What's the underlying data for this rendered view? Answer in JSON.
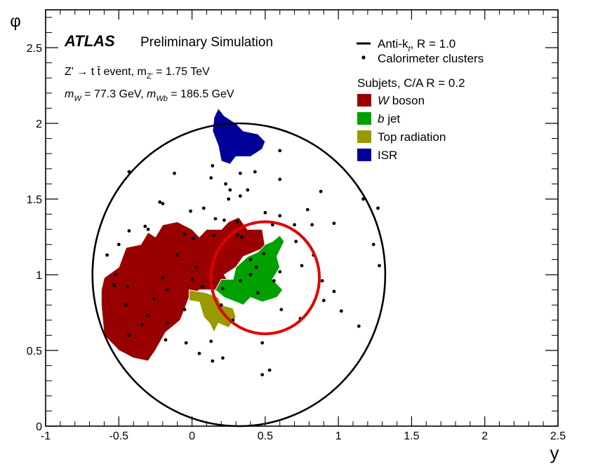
{
  "chart_data": {
    "type": "scatter",
    "xlabel": "y",
    "ylabel": "φ",
    "xlim": [
      -1,
      2.5
    ],
    "ylim": [
      0,
      2.75
    ],
    "x_ticks": [
      "-1",
      "-0.5",
      "0",
      "0.5",
      "1",
      "1.5",
      "2",
      "2.5"
    ],
    "y_ticks": [
      "0",
      "0.5",
      "1",
      "1.5",
      "2",
      "2.5"
    ],
    "annotations": {
      "atlas": "ATLAS",
      "label": "Preliminary Simulation",
      "process": "Z' → t t̄ event, m",
      "process_sub": "Z'",
      "process_value": " = 1.75 TeV",
      "mass_w_sym": "m",
      "mass_w_sub": "W",
      "mass_w_value": " = 77.3 GeV, ",
      "mass_wb_sym": "m",
      "mass_wb_sub": "Wb",
      "mass_wb_value": " = 186.5 GeV"
    },
    "legend": {
      "jet_label": "Anti-k",
      "jet_sub": "t",
      "jet_rest": ", R = 1.0",
      "clusters_label": "Calorimeter clusters",
      "subjets_header": "Subjets, C/A R = 0.2",
      "entries": [
        {
          "symbol": "W",
          "text": " boson",
          "color": "#990000"
        },
        {
          "symbol": "b",
          "text": " jet",
          "color": "#00a000"
        },
        {
          "symbol": "",
          "text": "Top radiation",
          "color": "#999900"
        },
        {
          "symbol": "",
          "text": "ISR",
          "color": "#000099"
        }
      ]
    },
    "large_jet": {
      "center": [
        0.32,
        1.0
      ],
      "radius": 1.0
    },
    "highlight_circle": {
      "center": [
        0.5,
        0.98
      ],
      "radius": 0.37,
      "color": "#e00000"
    },
    "subjet_regions": [
      {
        "name": "W boson",
        "color": "#990000",
        "points": [
          [
            -0.62,
            0.8
          ],
          [
            -0.6,
            0.6
          ],
          [
            -0.5,
            0.5
          ],
          [
            -0.4,
            0.45
          ],
          [
            -0.3,
            0.43
          ],
          [
            -0.25,
            0.5
          ],
          [
            -0.18,
            0.62
          ],
          [
            -0.08,
            0.7
          ],
          [
            -0.02,
            0.85
          ],
          [
            0.05,
            0.9
          ],
          [
            0.15,
            0.9
          ],
          [
            0.22,
            0.85
          ],
          [
            0.25,
            0.95
          ],
          [
            0.22,
            1.0
          ],
          [
            0.3,
            1.05
          ],
          [
            0.35,
            1.12
          ],
          [
            0.5,
            1.18
          ],
          [
            0.48,
            1.3
          ],
          [
            0.38,
            1.3
          ],
          [
            0.32,
            1.38
          ],
          [
            0.25,
            1.35
          ],
          [
            0.2,
            1.3
          ],
          [
            0.1,
            1.3
          ],
          [
            0.05,
            1.25
          ],
          [
            0.0,
            1.3
          ],
          [
            -0.1,
            1.35
          ],
          [
            -0.2,
            1.33
          ],
          [
            -0.25,
            1.25
          ],
          [
            -0.3,
            1.28
          ],
          [
            -0.35,
            1.2
          ],
          [
            -0.45,
            1.18
          ],
          [
            -0.5,
            1.05
          ],
          [
            -0.6,
            0.98
          ],
          [
            -0.62,
            0.9
          ]
        ]
      },
      {
        "name": "b jet",
        "color": "#00a000",
        "points": [
          [
            0.16,
            0.9
          ],
          [
            0.22,
            0.85
          ],
          [
            0.3,
            0.82
          ],
          [
            0.35,
            0.8
          ],
          [
            0.4,
            0.85
          ],
          [
            0.48,
            0.82
          ],
          [
            0.58,
            0.85
          ],
          [
            0.62,
            0.9
          ],
          [
            0.55,
            0.97
          ],
          [
            0.6,
            1.05
          ],
          [
            0.58,
            1.12
          ],
          [
            0.63,
            1.22
          ],
          [
            0.6,
            1.26
          ],
          [
            0.55,
            1.22
          ],
          [
            0.5,
            1.2
          ],
          [
            0.45,
            1.15
          ],
          [
            0.38,
            1.12
          ],
          [
            0.3,
            1.05
          ],
          [
            0.28,
            0.97
          ],
          [
            0.2,
            0.97
          ]
        ]
      },
      {
        "name": "Top radiation",
        "color": "#999900",
        "points": [
          [
            -0.02,
            0.9
          ],
          [
            0.1,
            0.88
          ],
          [
            0.18,
            0.85
          ],
          [
            0.2,
            0.8
          ],
          [
            0.28,
            0.78
          ],
          [
            0.3,
            0.72
          ],
          [
            0.25,
            0.65
          ],
          [
            0.18,
            0.68
          ],
          [
            0.15,
            0.62
          ],
          [
            0.12,
            0.68
          ],
          [
            0.08,
            0.72
          ],
          [
            0.05,
            0.82
          ],
          [
            -0.02,
            0.83
          ]
        ]
      },
      {
        "name": "ISR",
        "color": "#000099",
        "points": [
          [
            0.14,
            1.95
          ],
          [
            0.18,
            1.85
          ],
          [
            0.2,
            1.75
          ],
          [
            0.26,
            1.73
          ],
          [
            0.3,
            1.78
          ],
          [
            0.4,
            1.78
          ],
          [
            0.48,
            1.83
          ],
          [
            0.5,
            1.88
          ],
          [
            0.45,
            1.93
          ],
          [
            0.35,
            1.95
          ],
          [
            0.3,
            2.0
          ],
          [
            0.22,
            2.05
          ],
          [
            0.18,
            2.1
          ],
          [
            0.15,
            2.04
          ]
        ]
      }
    ],
    "clusters": [
      [
        0.23,
        1.6
      ],
      [
        0.38,
        1.56
      ],
      [
        0.43,
        1.68
      ],
      [
        0.33,
        1.67
      ],
      [
        0.14,
        1.72
      ],
      [
        0.13,
        1.64
      ],
      [
        0.26,
        1.56
      ],
      [
        0.25,
        1.5
      ],
      [
        0.16,
        1.37
      ],
      [
        0.08,
        1.44
      ],
      [
        0.22,
        1.36
      ],
      [
        0.5,
        1.41
      ],
      [
        0.55,
        1.33
      ],
      [
        0.6,
        1.39
      ],
      [
        0.6,
        1.63
      ],
      [
        0.79,
        1.43
      ],
      [
        0.88,
        1.55
      ],
      [
        0.7,
        1.33
      ],
      [
        0.82,
        1.33
      ],
      [
        1.17,
        1.5
      ],
      [
        1.27,
        1.44
      ],
      [
        1.24,
        1.2
      ],
      [
        1.28,
        1.06
      ],
      [
        0.97,
        1.34
      ],
      [
        0.71,
        1.22
      ],
      [
        0.33,
        0.96
      ],
      [
        0.14,
        0.95
      ],
      [
        0.2,
        0.8
      ],
      [
        0.28,
        0.7
      ],
      [
        -0.22,
        1.48
      ],
      [
        -0.2,
        1.47
      ],
      [
        -0.01,
        1.42
      ],
      [
        0.01,
        1.24
      ],
      [
        -0.05,
        1.27
      ],
      [
        0.15,
        1.26
      ],
      [
        0.31,
        1.26
      ],
      [
        -0.3,
        1.3
      ],
      [
        -0.43,
        1.29
      ],
      [
        -0.58,
        1.13
      ],
      [
        -0.52,
        1.0
      ],
      [
        -0.44,
        0.92
      ],
      [
        -0.45,
        0.8
      ],
      [
        -0.3,
        0.73
      ],
      [
        -0.34,
        0.67
      ],
      [
        -0.26,
        0.84
      ],
      [
        -0.17,
        0.9
      ],
      [
        -0.1,
        1.13
      ],
      [
        -0.2,
        0.98
      ],
      [
        0.03,
        1.05
      ],
      [
        0.21,
        0.91
      ],
      [
        0.34,
        1.25
      ],
      [
        -0.12,
        1.67
      ],
      [
        -0.43,
        1.68
      ],
      [
        -0.5,
        1.2
      ],
      [
        -0.04,
        0.55
      ],
      [
        -0.18,
        0.57
      ],
      [
        -0.17,
        0.68
      ],
      [
        -0.05,
        0.77
      ],
      [
        0.05,
        0.48
      ],
      [
        0.13,
        0.56
      ],
      [
        0.14,
        0.43
      ],
      [
        0.21,
        0.45
      ],
      [
        0.48,
        0.55
      ],
      [
        0.53,
        0.37
      ],
      [
        0.48,
        0.34
      ],
      [
        0.44,
        1.05
      ],
      [
        0.4,
        1.0
      ],
      [
        0.45,
        0.88
      ],
      [
        0.31,
        1.35
      ],
      [
        0.56,
        0.96
      ],
      [
        0.9,
        0.83
      ],
      [
        0.97,
        0.89
      ],
      [
        1.02,
        0.76
      ],
      [
        1.14,
        0.66
      ],
      [
        0.74,
        0.71
      ],
      [
        0.61,
        0.77
      ],
      [
        0.4,
        1.1
      ],
      [
        0.49,
        1.14
      ],
      [
        0.6,
        1.02
      ],
      [
        0.75,
        1.06
      ],
      [
        0.83,
        1.13
      ],
      [
        0.89,
        0.96
      ],
      [
        0.6,
        1.82
      ],
      [
        0.33,
        1.52
      ],
      [
        -0.32,
        1.32
      ],
      [
        -0.53,
        0.93
      ],
      [
        -0.43,
        0.6
      ],
      [
        0.0,
        0.97
      ],
      [
        0.07,
        0.92
      ]
    ]
  }
}
